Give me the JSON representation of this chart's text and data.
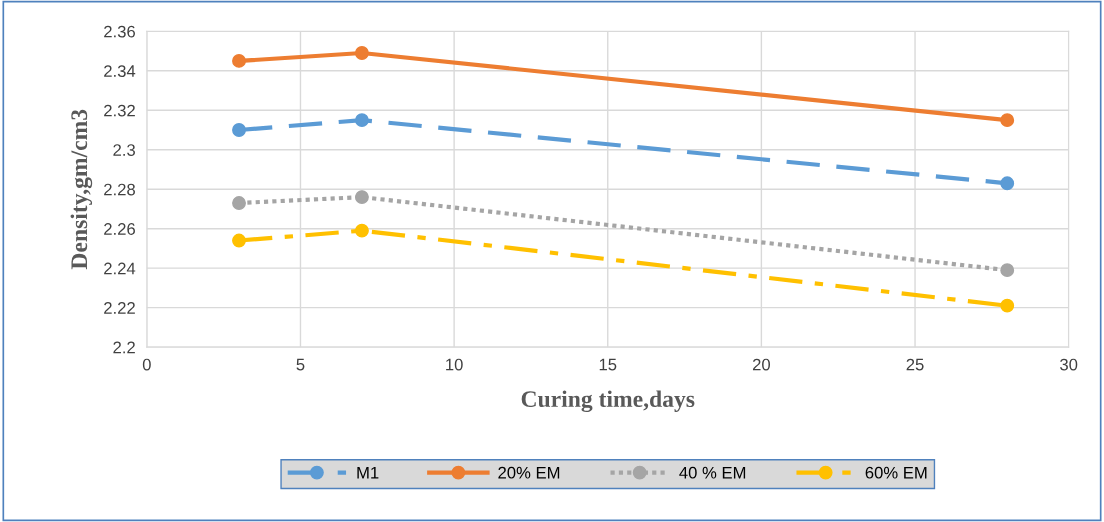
{
  "chart_data": {
    "type": "line",
    "xlabel": "Curing time,days",
    "ylabel": "Density,gm/cm3",
    "x": [
      3,
      7,
      28
    ],
    "series": [
      {
        "name": "M1",
        "color": "#5b9bd5",
        "values": [
          2.31,
          2.315,
          2.283
        ],
        "line_style": "dashed"
      },
      {
        "name": "20% EM",
        "color": "#ed7d31",
        "values": [
          2.345,
          2.349,
          2.315
        ],
        "line_style": "solid"
      },
      {
        "name": "40 % EM",
        "color": "#a5a5a5",
        "values": [
          2.273,
          2.276,
          2.239
        ],
        "line_style": "dotted"
      },
      {
        "name": "60% EM",
        "color": "#ffc000",
        "values": [
          2.254,
          2.259,
          2.221
        ],
        "line_style": "dashdot"
      }
    ],
    "xlim": [
      0,
      30
    ],
    "xticks": [
      0,
      5,
      10,
      15,
      20,
      25,
      30
    ],
    "ylim": [
      2.2,
      2.36
    ],
    "yticks": [
      {
        "value": 2.2,
        "label": "2.2"
      },
      {
        "value": 2.22,
        "label": "2.22"
      },
      {
        "value": 2.24,
        "label": "2.24"
      },
      {
        "value": 2.26,
        "label": "2.26"
      },
      {
        "value": 2.28,
        "label": "2.28"
      },
      {
        "value": 2.3,
        "label": "2.3"
      },
      {
        "value": 2.32,
        "label": "2.32"
      },
      {
        "value": 2.34,
        "label": "2.34"
      },
      {
        "value": 2.36,
        "label": "2.36"
      }
    ],
    "grid": true,
    "legend": "bottom",
    "marker": "circle"
  }
}
